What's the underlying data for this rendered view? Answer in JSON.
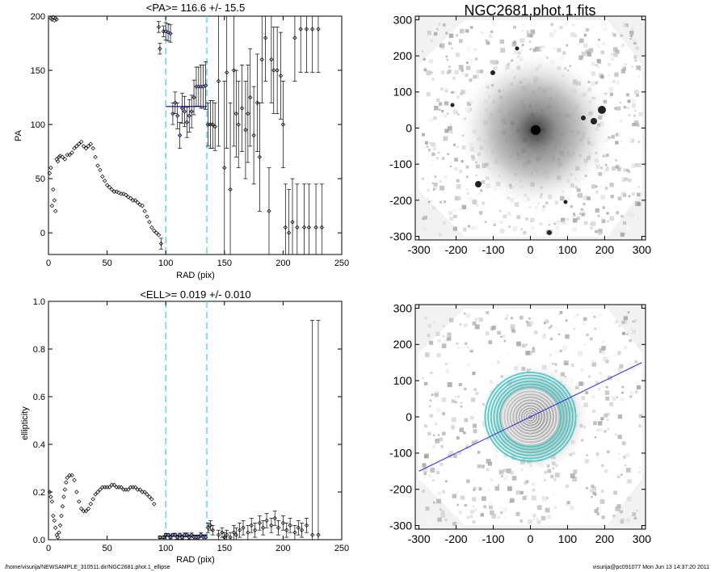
{
  "footer": {
    "path": "/home/visurija/NEWSAMPLE_310511.dir/NGC2681.phot.1_ellipse",
    "user_stamp": "visurija@pc091077  Mon Jun 13 14:37:20 2011"
  },
  "colors": {
    "series": "#000000",
    "fit": "#2b2bd6",
    "marker_lines": "#5fd3d3",
    "image_overlay": "#4bc5c5"
  },
  "chart_data": [
    {
      "type": "scatter",
      "title": "<PA>= 116.6 +/-  15.5",
      "xlabel": "RAD (pix)",
      "ylabel": "PA",
      "xlim": [
        0,
        250
      ],
      "ylim": [
        -20,
        200
      ],
      "xticks": [
        "0",
        "50",
        "100",
        "150",
        "200",
        "250"
      ],
      "yticks": [
        "0",
        "50",
        "100",
        "150",
        "200"
      ],
      "markers_x": [
        100,
        135
      ],
      "fit_line": {
        "x": [
          100,
          135
        ],
        "y": 116.6
      },
      "series": [
        {
          "x": [
            1,
            2,
            3,
            4,
            5,
            6,
            7,
            8,
            9,
            10,
            12,
            14,
            16,
            18,
            20,
            22,
            24,
            26,
            28,
            30,
            32,
            34,
            36,
            38,
            40,
            42,
            44,
            46,
            48,
            50,
            52,
            54,
            56,
            58,
            60,
            62,
            64,
            66,
            68,
            70,
            72,
            74,
            76,
            78,
            80,
            82,
            84,
            86,
            88,
            90,
            92,
            94
          ],
          "y": [
            55,
            60,
            25,
            40,
            30,
            20,
            68,
            66,
            70,
            71,
            70,
            68,
            72,
            72,
            74,
            78,
            80,
            82,
            84,
            80,
            78,
            80,
            82,
            78,
            70,
            62,
            58,
            52,
            48,
            44,
            42,
            40,
            38,
            38,
            37,
            36,
            36,
            35,
            33,
            32,
            30,
            30,
            28,
            26,
            25,
            20,
            15,
            10,
            5,
            2,
            0,
            -2
          ]
        },
        {
          "x": [
            2,
            3,
            4,
            5,
            6,
            7
          ],
          "y": [
            198,
            197,
            199,
            196,
            198,
            197
          ]
        },
        {
          "x": [
            94,
            95,
            96,
            98,
            100,
            102,
            104,
            106,
            108,
            110,
            112,
            114,
            116,
            118,
            120,
            122,
            124,
            126,
            128,
            130,
            132,
            134,
            136,
            138,
            140,
            142
          ],
          "y": [
            190,
            170,
            -10,
            186,
            186,
            185,
            184,
            110,
            120,
            108,
            90,
            115,
            112,
            102,
            108,
            112,
            125,
            135,
            135,
            135,
            135,
            136,
            100,
            100,
            100,
            98
          ],
          "yerr": [
            5,
            5,
            5,
            5,
            8,
            8,
            8,
            10,
            10,
            12,
            12,
            14,
            14,
            14,
            15,
            15,
            16,
            18,
            18,
            20,
            20,
            22,
            20,
            22,
            22,
            22
          ]
        },
        {
          "x": [
            145,
            150,
            152,
            155,
            158,
            160,
            162,
            165,
            168,
            170,
            172,
            175,
            178,
            180,
            182,
            185,
            188,
            190,
            192,
            195,
            198,
            200,
            202,
            205,
            208,
            210,
            212,
            215,
            218,
            220,
            222,
            225,
            228,
            230,
            233
          ],
          "y": [
            140,
            60,
            148,
            40,
            150,
            110,
            100,
            115,
            95,
            110,
            125,
            90,
            120,
            70,
            160,
            180,
            20,
            160,
            150,
            150,
            145,
            100,
            5,
            0,
            10,
            180,
            5,
            188,
            5,
            188,
            5,
            188,
            5,
            188,
            5
          ],
          "yerr": [
            60,
            80,
            70,
            80,
            70,
            40,
            40,
            40,
            45,
            45,
            45,
            45,
            45,
            50,
            40,
            40,
            40,
            40,
            40,
            40,
            40,
            40,
            40,
            40,
            40,
            40,
            40,
            40,
            40,
            40,
            40,
            40,
            40,
            40,
            40
          ]
        }
      ]
    },
    {
      "type": "scatter",
      "title": "<ELL>= 0.019 +/-  0.010",
      "xlabel": "RAD (pix)",
      "ylabel": "ellipticity",
      "xlim": [
        0,
        250
      ],
      "ylim": [
        0,
        1.0
      ],
      "xticks": [
        "0",
        "50",
        "100",
        "150",
        "200",
        "250"
      ],
      "yticks": [
        "0.0",
        "0.2",
        "0.4",
        "0.6",
        "0.8",
        "1.0"
      ],
      "markers_x": [
        100,
        135
      ],
      "fit_line": {
        "x": [
          100,
          135
        ],
        "y": 0.019
      },
      "series": [
        {
          "x": [
            1,
            2,
            3,
            4,
            5,
            6,
            7,
            8,
            9,
            10,
            11,
            12,
            13,
            14,
            15,
            16,
            18,
            20,
            22,
            24,
            26,
            28,
            30,
            32,
            34,
            36,
            38,
            40,
            42,
            44,
            46,
            48,
            50,
            52,
            54,
            56,
            58,
            60,
            62,
            64,
            66,
            68,
            70,
            72,
            74,
            76,
            78,
            80,
            82,
            84,
            86,
            88,
            90
          ],
          "y": [
            0.2,
            0.18,
            0.16,
            0.1,
            0.08,
            0.05,
            0.02,
            0.01,
            0.03,
            0.06,
            0.1,
            0.14,
            0.18,
            0.21,
            0.24,
            0.26,
            0.27,
            0.27,
            0.25,
            0.2,
            0.16,
            0.13,
            0.12,
            0.12,
            0.13,
            0.15,
            0.17,
            0.19,
            0.2,
            0.21,
            0.22,
            0.22,
            0.22,
            0.22,
            0.23,
            0.23,
            0.22,
            0.22,
            0.22,
            0.21,
            0.21,
            0.21,
            0.22,
            0.22,
            0.22,
            0.21,
            0.21,
            0.2,
            0.2,
            0.19,
            0.18,
            0.17,
            0.15
          ]
        },
        {
          "x": [
            95,
            98,
            100,
            102,
            104,
            106,
            108,
            110,
            112,
            114,
            116,
            118,
            120,
            122,
            124,
            126,
            128,
            130,
            132,
            134
          ],
          "y": [
            0.01,
            0.01,
            0.02,
            0.02,
            0.01,
            0.02,
            0.02,
            0.01,
            0.02,
            0.01,
            0.02,
            0.02,
            0.01,
            0.02,
            0.01,
            0.01,
            0.01,
            0.02,
            0.01,
            0.01
          ],
          "yerr": [
            0.005,
            0.005,
            0.006,
            0.006,
            0.006,
            0.006,
            0.007,
            0.007,
            0.007,
            0.007,
            0.008,
            0.008,
            0.008,
            0.008,
            0.009,
            0.009,
            0.009,
            0.01,
            0.01,
            0.01
          ]
        },
        {
          "x": [
            136,
            138,
            140,
            145,
            148,
            150,
            152,
            155,
            158,
            160,
            163,
            166,
            170,
            173,
            176,
            180,
            183,
            186,
            190,
            193,
            196,
            200,
            203,
            206,
            210,
            213,
            216,
            220,
            225,
            230
          ],
          "y": [
            0.05,
            0.06,
            0.04,
            0.02,
            0.03,
            0.01,
            0.02,
            0.01,
            0.03,
            0.02,
            0.04,
            0.05,
            0.03,
            0.06,
            0.04,
            0.07,
            0.05,
            0.08,
            0.06,
            0.09,
            0.05,
            0.07,
            0.04,
            0.06,
            0.03,
            0.05,
            0.04,
            0.06,
            0.02,
            0.02
          ],
          "yerr": [
            0.02,
            0.02,
            0.02,
            0.02,
            0.02,
            0.02,
            0.02,
            0.02,
            0.03,
            0.03,
            0.03,
            0.03,
            0.03,
            0.03,
            0.03,
            0.03,
            0.03,
            0.03,
            0.03,
            0.03,
            0.03,
            0.03,
            0.03,
            0.03,
            0.03,
            0.03,
            0.03,
            0.03,
            0.9,
            0.9
          ]
        }
      ]
    },
    {
      "type": "heatmap",
      "title": "NGC2681.phot.1.fits",
      "xlabel": "",
      "ylabel": "",
      "xlim": [
        -310,
        310
      ],
      "ylim": [
        -310,
        310
      ],
      "xticks": [
        "-300",
        "-200",
        "-100",
        "0",
        "100",
        "200",
        "300"
      ],
      "yticks": [
        "-300",
        "-200",
        "-100",
        "0",
        "100",
        "200",
        "300"
      ]
    },
    {
      "type": "heatmap",
      "title": "",
      "xlabel": "",
      "ylabel": "",
      "xlim": [
        -310,
        310
      ],
      "ylim": [
        -310,
        310
      ],
      "xticks": [
        "-300",
        "-200",
        "-100",
        "0",
        "100",
        "200",
        "300"
      ],
      "yticks": [
        "-300",
        "-200",
        "-100",
        "0",
        "100",
        "200",
        "300"
      ],
      "isophote_radii": [
        8,
        14,
        20,
        27,
        34,
        42,
        50,
        58,
        66,
        74,
        82,
        90,
        98,
        106,
        114,
        122
      ],
      "pa_line": {
        "x": [
          -300,
          300
        ],
        "y": [
          -150,
          150
        ]
      }
    }
  ]
}
